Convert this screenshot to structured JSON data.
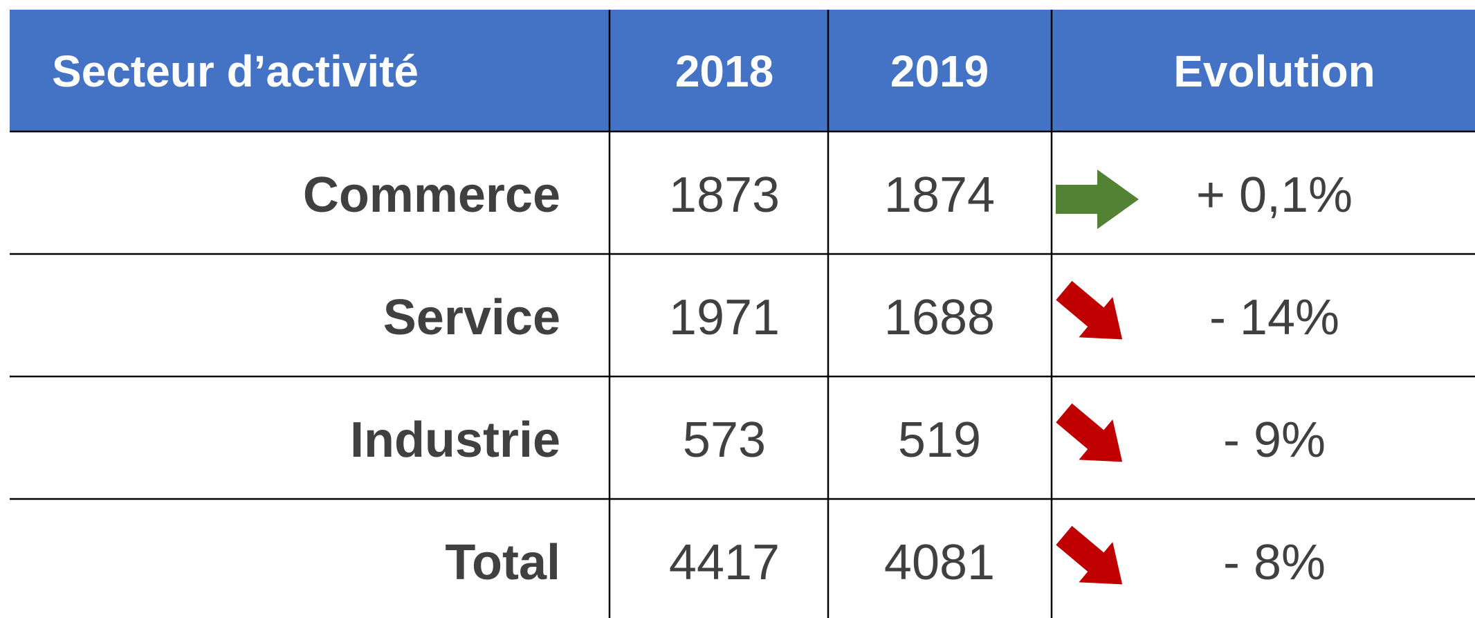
{
  "table": {
    "header": [
      "Secteur d’activité",
      "2018",
      "2019",
      "Evolution"
    ],
    "rows": [
      [
        "Commerce",
        1873,
        1874,
        "+ 0,1%"
      ],
      [
        "Service",
        1971,
        1688,
        "- 14%"
      ],
      [
        "Industrie",
        573,
        519,
        "- 9%"
      ],
      [
        "Total",
        4417,
        4081,
        "- 8%"
      ]
    ]
  }
}
